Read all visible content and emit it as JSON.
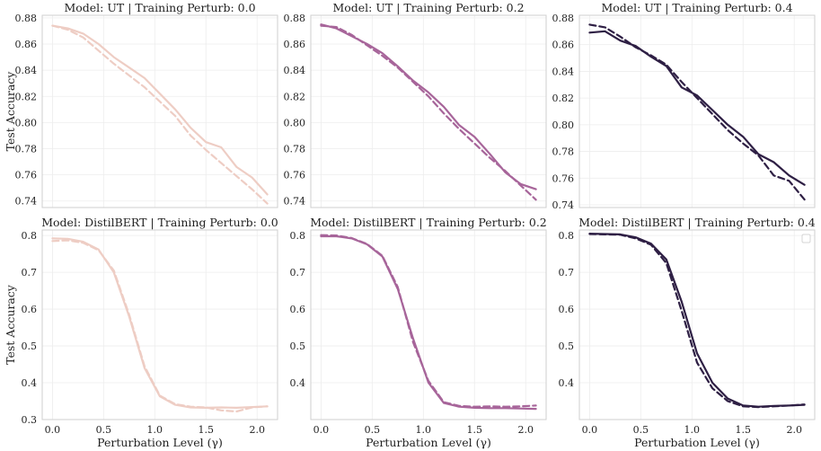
{
  "chart_data": [
    {
      "type": "line",
      "title": "Model: UT | Training Perturb: 0.0",
      "xlabel": "",
      "ylabel": "Test Accuracy",
      "xlim": [
        -0.1,
        2.2
      ],
      "ylim": [
        0.735,
        0.882
      ],
      "xticks": [],
      "yticks": [
        0.74,
        0.76,
        0.78,
        0.8,
        0.82,
        0.84,
        0.86,
        0.88
      ],
      "ytick_labels": [
        "0.74",
        "0.76",
        "0.78",
        "0.80",
        "0.82",
        "0.84",
        "0.86",
        "0.88"
      ],
      "color": "#eecdc4",
      "series": [
        {
          "name": "solid",
          "dash": false,
          "x": [
            0.0,
            0.15,
            0.3,
            0.45,
            0.6,
            0.75,
            0.9,
            1.05,
            1.2,
            1.35,
            1.5,
            1.65,
            1.8,
            1.95,
            2.1
          ],
          "values": [
            0.874,
            0.872,
            0.868,
            0.86,
            0.85,
            0.842,
            0.834,
            0.822,
            0.81,
            0.796,
            0.785,
            0.781,
            0.766,
            0.758,
            0.745
          ]
        },
        {
          "name": "dashed",
          "dash": true,
          "x": [
            0.0,
            0.15,
            0.3,
            0.45,
            0.6,
            0.75,
            0.9,
            1.05,
            1.2,
            1.35,
            1.5,
            1.65,
            1.8,
            1.95,
            2.1
          ],
          "values": [
            0.874,
            0.871,
            0.865,
            0.855,
            0.845,
            0.836,
            0.827,
            0.816,
            0.805,
            0.79,
            0.779,
            0.769,
            0.759,
            0.749,
            0.738
          ]
        }
      ]
    },
    {
      "type": "line",
      "title": "Model: UT | Training Perturb: 0.2",
      "xlabel": "",
      "ylabel": "",
      "xlim": [
        -0.1,
        2.2
      ],
      "ylim": [
        0.735,
        0.882
      ],
      "xticks": [],
      "yticks": [
        0.74,
        0.76,
        0.78,
        0.8,
        0.82,
        0.84,
        0.86,
        0.88
      ],
      "ytick_labels": [
        "0.74",
        "0.76",
        "0.78",
        "0.80",
        "0.82",
        "0.84",
        "0.86",
        "0.88"
      ],
      "color": "#a7659a",
      "series": [
        {
          "name": "solid",
          "dash": false,
          "x": [
            0.0,
            0.15,
            0.3,
            0.45,
            0.6,
            0.75,
            0.9,
            1.05,
            1.2,
            1.35,
            1.5,
            1.65,
            1.8,
            1.95,
            2.1
          ],
          "values": [
            0.875,
            0.872,
            0.866,
            0.86,
            0.853,
            0.843,
            0.832,
            0.823,
            0.812,
            0.798,
            0.789,
            0.776,
            0.762,
            0.753,
            0.749
          ]
        },
        {
          "name": "dashed",
          "dash": true,
          "x": [
            0.0,
            0.15,
            0.3,
            0.45,
            0.6,
            0.75,
            0.9,
            1.05,
            1.2,
            1.35,
            1.5,
            1.65,
            1.8,
            1.95,
            2.1
          ],
          "values": [
            0.874,
            0.873,
            0.867,
            0.859,
            0.851,
            0.842,
            0.831,
            0.82,
            0.807,
            0.795,
            0.784,
            0.773,
            0.763,
            0.752,
            0.741
          ]
        }
      ]
    },
    {
      "type": "line",
      "title": "Model: UT | Training Perturb: 0.4",
      "xlabel": "",
      "ylabel": "",
      "xlim": [
        -0.1,
        2.2
      ],
      "ylim": [
        0.738,
        0.882
      ],
      "xticks": [],
      "yticks": [
        0.74,
        0.76,
        0.78,
        0.8,
        0.82,
        0.84,
        0.86,
        0.88
      ],
      "ytick_labels": [
        "0.74",
        "0.76",
        "0.78",
        "0.80",
        "0.82",
        "0.84",
        "0.86",
        "0.88"
      ],
      "color": "#2e1f44",
      "series": [
        {
          "name": "solid",
          "dash": false,
          "x": [
            0.0,
            0.15,
            0.3,
            0.45,
            0.6,
            0.75,
            0.9,
            1.05,
            1.2,
            1.35,
            1.5,
            1.65,
            1.8,
            1.95,
            2.1
          ],
          "values": [
            0.869,
            0.87,
            0.863,
            0.859,
            0.851,
            0.844,
            0.828,
            0.822,
            0.811,
            0.8,
            0.791,
            0.778,
            0.772,
            0.762,
            0.755
          ]
        },
        {
          "name": "dashed",
          "dash": true,
          "x": [
            0.0,
            0.15,
            0.3,
            0.45,
            0.6,
            0.75,
            0.9,
            1.05,
            1.2,
            1.35,
            1.5,
            1.65,
            1.8,
            1.95,
            2.1
          ],
          "values": [
            0.875,
            0.873,
            0.866,
            0.858,
            0.852,
            0.845,
            0.832,
            0.82,
            0.808,
            0.796,
            0.786,
            0.777,
            0.762,
            0.758,
            0.744
          ]
        }
      ]
    },
    {
      "type": "line",
      "title": "Model: DistilBERT | Training Perturb: 0.0",
      "xlabel": "Perturbation Level (γ)",
      "ylabel": "Test Accuracy",
      "xlim": [
        -0.1,
        2.2
      ],
      "ylim": [
        0.3,
        0.815
      ],
      "xticks": [
        0.0,
        0.5,
        1.0,
        1.5,
        2.0
      ],
      "xtick_labels": [
        "0.0",
        "0.5",
        "1.0",
        "1.5",
        "2.0"
      ],
      "yticks": [
        0.3,
        0.4,
        0.5,
        0.6,
        0.7,
        0.8
      ],
      "ytick_labels": [
        "0.3",
        "0.4",
        "0.5",
        "0.6",
        "0.7",
        "0.8"
      ],
      "color": "#eecdc4",
      "series": [
        {
          "name": "solid",
          "dash": false,
          "x": [
            0.0,
            0.15,
            0.3,
            0.45,
            0.6,
            0.75,
            0.9,
            1.05,
            1.2,
            1.35,
            1.5,
            1.65,
            1.8,
            1.95,
            2.1
          ],
          "values": [
            0.792,
            0.791,
            0.783,
            0.762,
            0.7,
            0.58,
            0.44,
            0.363,
            0.34,
            0.333,
            0.332,
            0.333,
            0.332,
            0.334,
            0.336
          ]
        },
        {
          "name": "dashed",
          "dash": true,
          "x": [
            0.0,
            0.15,
            0.3,
            0.45,
            0.6,
            0.75,
            0.9,
            1.05,
            1.2,
            1.35,
            1.5,
            1.65,
            1.8,
            1.95,
            2.1
          ],
          "values": [
            0.785,
            0.787,
            0.78,
            0.76,
            0.705,
            0.585,
            0.445,
            0.365,
            0.342,
            0.335,
            0.333,
            0.325,
            0.322,
            0.333,
            0.336
          ]
        }
      ]
    },
    {
      "type": "line",
      "title": "Model: DistilBERT | Training Perturb: 0.2",
      "xlabel": "Perturbation Level (γ)",
      "ylabel": "",
      "xlim": [
        -0.1,
        2.2
      ],
      "ylim": [
        0.3,
        0.815
      ],
      "xticks": [
        0.0,
        0.5,
        1.0,
        1.5,
        2.0
      ],
      "xtick_labels": [
        "0.0",
        "0.5",
        "1.0",
        "1.5",
        "2.0"
      ],
      "yticks": [
        0.4,
        0.5,
        0.6,
        0.7,
        0.8
      ],
      "ytick_labels": [
        "0.4",
        "0.5",
        "0.6",
        "0.7",
        "0.8"
      ],
      "color": "#a7659a",
      "series": [
        {
          "name": "solid",
          "dash": false,
          "x": [
            0.0,
            0.15,
            0.3,
            0.45,
            0.6,
            0.75,
            0.9,
            1.05,
            1.2,
            1.35,
            1.5,
            1.65,
            1.8,
            1.95,
            2.1
          ],
          "values": [
            0.798,
            0.798,
            0.792,
            0.776,
            0.743,
            0.655,
            0.52,
            0.4,
            0.345,
            0.335,
            0.332,
            0.331,
            0.331,
            0.33,
            0.329
          ]
        },
        {
          "name": "dashed",
          "dash": true,
          "x": [
            0.0,
            0.15,
            0.3,
            0.45,
            0.6,
            0.75,
            0.9,
            1.05,
            1.2,
            1.35,
            1.5,
            1.65,
            1.8,
            1.95,
            2.1
          ],
          "values": [
            0.801,
            0.8,
            0.793,
            0.777,
            0.745,
            0.66,
            0.51,
            0.405,
            0.347,
            0.337,
            0.335,
            0.336,
            0.335,
            0.336,
            0.338
          ]
        }
      ]
    },
    {
      "type": "line",
      "title": "Model: DistilBERT | Training Perturb: 0.4",
      "xlabel": "Perturbation Level (γ)",
      "ylabel": "",
      "xlim": [
        -0.1,
        2.2
      ],
      "ylim": [
        0.3,
        0.815
      ],
      "xticks": [
        0.0,
        0.5,
        1.0,
        1.5,
        2.0
      ],
      "xtick_labels": [
        "0.0",
        "0.5",
        "1.0",
        "1.5",
        "2.0"
      ],
      "yticks": [
        0.4,
        0.5,
        0.6,
        0.7,
        0.8
      ],
      "ytick_labels": [
        "0.4",
        "0.5",
        "0.6",
        "0.7",
        "0.8"
      ],
      "color": "#2e1f44",
      "legend": "top-right (empty)",
      "series": [
        {
          "name": "solid",
          "dash": false,
          "x": [
            0.0,
            0.15,
            0.3,
            0.45,
            0.6,
            0.75,
            0.9,
            1.05,
            1.2,
            1.35,
            1.5,
            1.65,
            1.8,
            1.95,
            2.1
          ],
          "values": [
            0.805,
            0.804,
            0.803,
            0.795,
            0.778,
            0.735,
            0.62,
            0.48,
            0.4,
            0.357,
            0.338,
            0.335,
            0.337,
            0.338,
            0.34
          ]
        },
        {
          "name": "dashed",
          "dash": true,
          "x": [
            0.0,
            0.15,
            0.3,
            0.45,
            0.6,
            0.75,
            0.9,
            1.05,
            1.2,
            1.35,
            1.5,
            1.65,
            1.8,
            1.95,
            2.1
          ],
          "values": [
            0.804,
            0.803,
            0.802,
            0.792,
            0.775,
            0.725,
            0.595,
            0.455,
            0.385,
            0.35,
            0.336,
            0.334,
            0.336,
            0.338,
            0.341
          ]
        }
      ]
    }
  ]
}
